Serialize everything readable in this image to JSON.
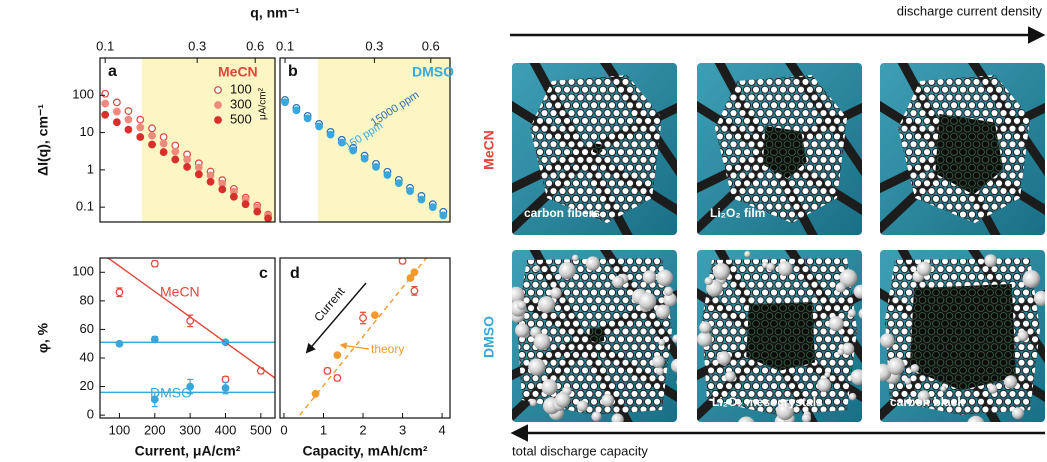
{
  "chart_data": [
    {
      "type": "line",
      "panel": "a",
      "x_label": "q, nm⁻¹",
      "y_label": "ΔI(q), cm⁻¹",
      "x_axis": "top",
      "log_x": true,
      "log_y": true,
      "xlim": [
        0.094,
        0.76
      ],
      "ylim": [
        0.04,
        1000
      ],
      "xticks": [
        0.1,
        0.3,
        0.6
      ],
      "yticks": [
        0.1,
        1,
        10,
        100
      ],
      "highlight_x": [
        0.155,
        0.76
      ],
      "highlight_color": "#fcf6c4",
      "legend_title": "MeCN",
      "legend_unit": "μA/cm²",
      "legend_color": "#e0463a",
      "series": [
        {
          "name": "100",
          "color": "#e0463a",
          "marker": "open",
          "x": [
            0.1,
            0.115,
            0.132,
            0.152,
            0.175,
            0.201,
            0.231,
            0.266,
            0.306,
            0.352,
            0.405,
            0.465,
            0.535,
            0.615,
            0.7
          ],
          "values": [
            110,
            64.5,
            37.8,
            22.2,
            13,
            7.6,
            4.5,
            2.6,
            1.5,
            0.9,
            0.53,
            0.31,
            0.18,
            0.11,
            0.063
          ]
        },
        {
          "name": "300",
          "color": "#ef8a7c",
          "marker": "filled",
          "x": [
            0.1,
            0.115,
            0.132,
            0.152,
            0.175,
            0.201,
            0.231,
            0.266,
            0.306,
            0.352,
            0.405,
            0.465,
            0.535,
            0.615,
            0.7
          ],
          "values": [
            60,
            36.6,
            22.4,
            13.7,
            8.3,
            5.1,
            3.1,
            1.9,
            1.16,
            0.71,
            0.43,
            0.26,
            0.16,
            0.098,
            0.06
          ]
        },
        {
          "name": "500",
          "color": "#d7302a",
          "marker": "filled",
          "x": [
            0.1,
            0.115,
            0.132,
            0.152,
            0.175,
            0.201,
            0.231,
            0.266,
            0.306,
            0.352,
            0.405,
            0.465,
            0.535,
            0.615,
            0.7
          ],
          "values": [
            30,
            19,
            12,
            7.6,
            4.8,
            3,
            1.9,
            1.2,
            0.76,
            0.48,
            0.3,
            0.19,
            0.12,
            0.076,
            0.05
          ]
        }
      ]
    },
    {
      "type": "line",
      "panel": "b",
      "x_axis": "top",
      "log_x": true,
      "log_y": true,
      "xlim": [
        0.094,
        0.76
      ],
      "ylim": [
        0.04,
        1000
      ],
      "xticks": [
        0.1,
        0.3,
        0.6
      ],
      "highlight_x": [
        0.15,
        0.76
      ],
      "highlight_color": "#fcf6c4",
      "legend_title": "DMSO",
      "legend_color": "#3aa7dc",
      "series": [
        {
          "name": "15000 ppm",
          "color": "#2c6db3",
          "marker": "open",
          "x": [
            0.1,
            0.115,
            0.132,
            0.152,
            0.175,
            0.201,
            0.231,
            0.266,
            0.306,
            0.352,
            0.405,
            0.465,
            0.535,
            0.615,
            0.7
          ],
          "values": [
            75,
            45.8,
            28,
            17.1,
            10.4,
            6.4,
            3.9,
            2.4,
            1.45,
            0.89,
            0.54,
            0.33,
            0.2,
            0.12,
            0.075
          ]
        },
        {
          "name": "150 ppm",
          "color": "#3aa7dc",
          "marker": "filled",
          "x": [
            0.1,
            0.115,
            0.132,
            0.152,
            0.175,
            0.201,
            0.231,
            0.266,
            0.306,
            0.352,
            0.405,
            0.465,
            0.535,
            0.615,
            0.7
          ],
          "values": [
            65,
            39.5,
            24,
            14.6,
            8.8,
            5.4,
            3.3,
            2,
            1.2,
            0.73,
            0.44,
            0.27,
            0.16,
            0.1,
            0.06
          ]
        }
      ]
    },
    {
      "type": "scatter",
      "panel": "c",
      "x_label": "Current, μA/cm²",
      "y_label": "φ, %",
      "x_axis": "bottom",
      "xlim": [
        45,
        540
      ],
      "ylim": [
        -2,
        110
      ],
      "xticks": [
        100,
        200,
        300,
        400,
        500
      ],
      "yticks": [
        0,
        20,
        40,
        60,
        80,
        100
      ],
      "series": [
        {
          "name": "MeCN",
          "color": "#e0463a",
          "marker": "open",
          "x": [
            100,
            200,
            300,
            400,
            500
          ],
          "values": [
            86,
            106,
            66,
            25,
            31
          ],
          "errors": [
            3,
            2,
            4,
            2,
            2
          ]
        },
        {
          "name": "DMSO",
          "color": "#3aa7dc",
          "marker": "filled",
          "x": [
            100,
            200,
            200,
            300,
            400,
            400
          ],
          "values": [
            50,
            53,
            11,
            20,
            19,
            51
          ],
          "errors": [
            1.5,
            2,
            5,
            5,
            4,
            1.5
          ]
        },
        {
          "color": "#e0463a",
          "style": "line",
          "x": [
            68,
            540
          ],
          "values": [
            110,
            26
          ]
        },
        {
          "color": "#3aa7dc",
          "style": "line",
          "x": [
            45,
            540
          ],
          "values": [
            51,
            51
          ]
        },
        {
          "color": "#3aa7dc",
          "style": "line",
          "x": [
            45,
            540
          ],
          "values": [
            16,
            16
          ]
        }
      ]
    },
    {
      "type": "scatter",
      "panel": "d",
      "x_label": "Capacity, mAh/cm²",
      "x_axis": "bottom",
      "xlim": [
        -0.1,
        4.2
      ],
      "ylim": [
        -2,
        110
      ],
      "xticks": [
        0,
        1,
        2,
        3,
        4
      ],
      "annotations": [
        "Current"
      ],
      "series": [
        {
          "color": "#e0463a",
          "marker": "open",
          "x": [
            1.1,
            1.35,
            2.0,
            3.0,
            3.3
          ],
          "values": [
            31,
            26,
            68,
            108,
            87
          ],
          "errors": [
            2,
            2,
            4,
            2,
            3
          ]
        },
        {
          "name": "theory",
          "color": "#f29a2e",
          "marker": "filled",
          "x": [
            0.8,
            1.35,
            2.3,
            3.2,
            3.3
          ],
          "values": [
            15,
            42,
            70,
            96,
            100
          ]
        },
        {
          "color": "#f29a2e",
          "style": "line",
          "dash": true,
          "x": [
            0.4,
            3.6
          ],
          "values": [
            0,
            110
          ]
        }
      ]
    }
  ],
  "schematic": {
    "top_arrow": "discharge current density",
    "bottom_arrow": "total discharge capacity",
    "rows": [
      "MeCN",
      "DMSO"
    ],
    "labels": [
      "carbon fibers",
      "Li₂O₂ film",
      "Li₂O₂ mesocrystals",
      "carbon black"
    ]
  }
}
